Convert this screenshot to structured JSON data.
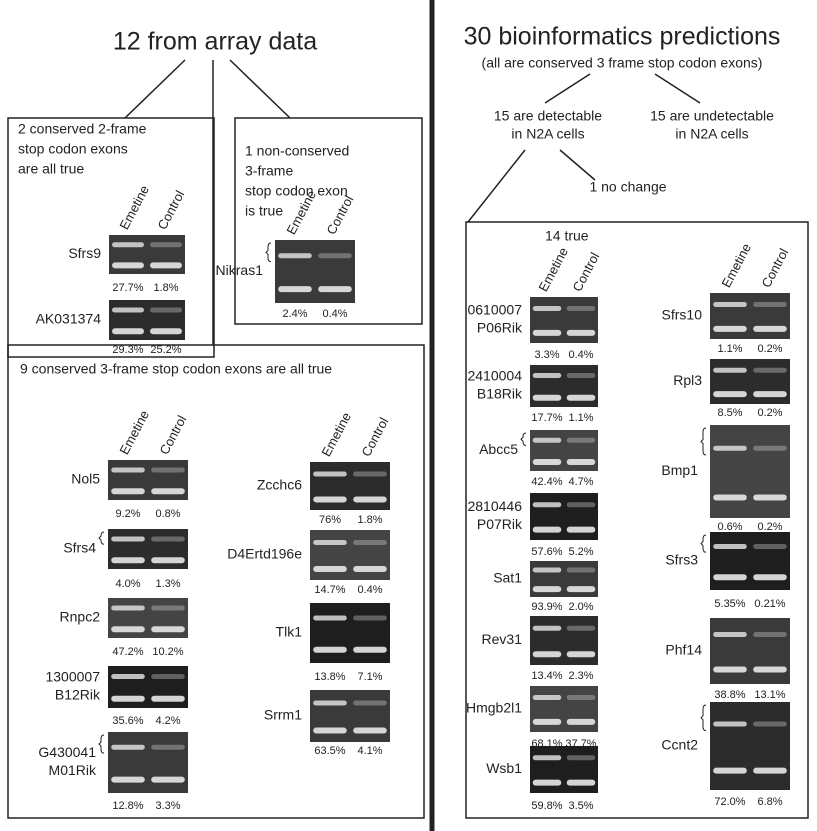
{
  "left": {
    "title": "12 from array data",
    "box_a": {
      "caption": [
        "2 conserved 2-frame",
        "stop codon exons",
        "are all true"
      ],
      "lanes": [
        "Emetine",
        "Control"
      ],
      "gels": [
        {
          "label": [
            "Sfrs9"
          ],
          "values": [
            "27.7%",
            "1.8%"
          ]
        },
        {
          "label": [
            "AK031374"
          ],
          "values": [
            "29.3%",
            "25.2%"
          ]
        }
      ]
    },
    "box_b": {
      "caption": [
        "1 non-conserved",
        "3-frame",
        "stop codon exon",
        "is true"
      ],
      "lanes": [
        "Emetine",
        "Control"
      ],
      "gels": [
        {
          "label": [
            "Nikras1"
          ],
          "values": [
            "2.4%",
            "0.4%"
          ]
        }
      ]
    },
    "box_c": {
      "caption": [
        "9 conserved 3-frame stop codon exons are all true"
      ],
      "lanes": [
        "Emetine",
        "Control"
      ],
      "gels": [
        {
          "label": [
            "Nol5"
          ],
          "values": [
            "9.2%",
            "0.8%"
          ]
        },
        {
          "label": [
            "Sfrs4"
          ],
          "values": [
            "4.0%",
            "1.3%"
          ]
        },
        {
          "label": [
            "Rnpc2"
          ],
          "values": [
            "47.2%",
            "10.2%"
          ]
        },
        {
          "label": [
            "1300007",
            "B12Rik"
          ],
          "values": [
            "35.6%",
            "4.2%"
          ]
        },
        {
          "label": [
            "G430041",
            "M01Rik"
          ],
          "values": [
            "12.8%",
            "3.3%"
          ]
        },
        {
          "label": [
            "Zcchc6"
          ],
          "values": [
            "76%",
            "1.8%"
          ]
        },
        {
          "label": [
            "D4Ertd196e"
          ],
          "values": [
            "14.7%",
            "0.4%"
          ]
        },
        {
          "label": [
            "Tlk1"
          ],
          "values": [
            "13.8%",
            "7.1%"
          ]
        },
        {
          "label": [
            "Srrm1"
          ],
          "values": [
            "63.5%",
            "4.1%"
          ]
        }
      ]
    }
  },
  "right": {
    "title": "30 bioinformatics predictions",
    "subtitle": "(all are conserved 3 frame stop codon exons)",
    "branches": [
      [
        "15 are detectable",
        "in N2A cells"
      ],
      [
        "15 are undetectable",
        "in N2A cells"
      ]
    ],
    "no_change": "1 no change",
    "box_d": {
      "caption": [
        "14 true"
      ],
      "lanes": [
        "Emetine",
        "Control"
      ],
      "gels": [
        {
          "label": [
            "0610007",
            "P06Rik"
          ],
          "values": [
            "3.3%",
            "0.4%"
          ]
        },
        {
          "label": [
            "2410004",
            "B18Rik"
          ],
          "values": [
            "17.7%",
            "1.1%"
          ]
        },
        {
          "label": [
            "Abcc5"
          ],
          "values": [
            "42.4%",
            "4.7%"
          ]
        },
        {
          "label": [
            "2810446",
            "P07Rik"
          ],
          "values": [
            "57.6%",
            "5.2%"
          ]
        },
        {
          "label": [
            "Sat1"
          ],
          "values": [
            "93.9%",
            "2.0%"
          ]
        },
        {
          "label": [
            "Rev31"
          ],
          "values": [
            "13.4%",
            "2.3%"
          ]
        },
        {
          "label": [
            "Hmgb2l1"
          ],
          "values": [
            "68.1%",
            "37.7%"
          ]
        },
        {
          "label": [
            "Wsb1"
          ],
          "values": [
            "59.8%",
            "3.5%"
          ]
        },
        {
          "label": [
            "Sfrs10"
          ],
          "values": [
            "1.1%",
            "0.2%"
          ]
        },
        {
          "label": [
            "Rpl3"
          ],
          "values": [
            "8.5%",
            "0.2%"
          ]
        },
        {
          "label": [
            "Bmp1"
          ],
          "values": [
            "0.6%",
            "0.2%"
          ]
        },
        {
          "label": [
            "Sfrs3"
          ],
          "values": [
            "5.35%",
            "0.21%"
          ]
        },
        {
          "label": [
            "Phf14"
          ],
          "values": [
            "38.8%",
            "13.1%"
          ]
        },
        {
          "label": [
            "Ccnt2"
          ],
          "values": [
            "72.0%",
            "6.8%"
          ]
        }
      ]
    }
  }
}
